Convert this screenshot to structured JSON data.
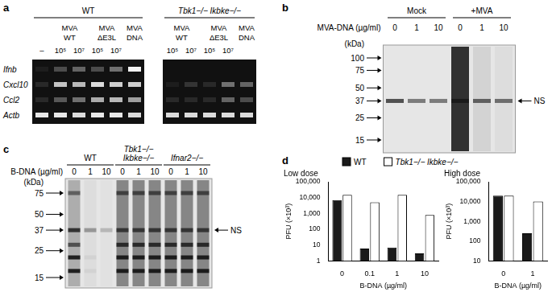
{
  "panels": {
    "a": {
      "label": "a",
      "genotypes": [
        {
          "name": "WT",
          "treatments": [
            {
              "name": null,
              "doses": [
                "–"
              ]
            },
            {
              "name": "MVA WT",
              "doses": [
                "10⁵",
                "10⁷"
              ]
            },
            {
              "name": "MVA ΔE3L",
              "doses": [
                "10⁵",
                "10⁷"
              ]
            },
            {
              "name": "MVA DNA",
              "doses": [
                null
              ]
            }
          ]
        },
        {
          "name": "Tbk1−/− Ikbke−/−",
          "treatments": [
            {
              "name": "MVA WT",
              "doses": [
                "10⁵",
                "10⁷"
              ]
            },
            {
              "name": "MVA ΔE3L",
              "doses": [
                "10⁵",
                "10⁷"
              ]
            },
            {
              "name": "MVA DNA",
              "doses": [
                null
              ]
            }
          ]
        }
      ],
      "genes": [
        {
          "name": "Ifnb",
          "intensity": [
            0.05,
            0.25,
            0.35,
            0.25,
            0.4,
            0.95,
            0,
            0,
            0,
            0,
            0
          ]
        },
        {
          "name": "Cxcl10",
          "intensity": [
            0.1,
            0.75,
            0.7,
            0.85,
            0.8,
            0.8,
            0.05,
            0.15,
            0.1,
            0.4,
            0.35
          ]
        },
        {
          "name": "Ccl2",
          "intensity": [
            0.1,
            0.3,
            0.4,
            0.65,
            0.7,
            0.6,
            0.1,
            0.1,
            0.1,
            0.35,
            0.25
          ]
        },
        {
          "name": "Actb",
          "intensity": [
            0.9,
            0.9,
            0.85,
            0.9,
            0.9,
            0.85,
            0.85,
            0.85,
            0.85,
            0.85,
            0.85
          ]
        }
      ]
    },
    "b": {
      "label": "b",
      "groups": [
        {
          "name": "Mock",
          "lanes": 3
        },
        {
          "name": "+MVA",
          "lanes": 3
        }
      ],
      "dose_title": "MVA-DNA (µg/ml)",
      "doses": [
        0,
        1,
        10,
        0,
        1,
        10
      ],
      "markers": {
        "title": "(kDa)",
        "values": [
          100,
          75,
          50,
          37,
          25,
          15
        ]
      },
      "ns": {
        "label": "NS",
        "kda": 37
      },
      "bands": [
        {
          "kda": 37,
          "intensity": [
            0.7,
            0.5,
            0.5,
            0.7,
            0.6,
            0.55
          ]
        }
      ],
      "smear": [
        0,
        0,
        0,
        0.95,
        0.1,
        0.05
      ]
    },
    "c": {
      "label": "c",
      "groups": [
        {
          "name": "WT",
          "lanes": 3
        },
        {
          "name": "Tbk1−/− Ikbke−/−",
          "lanes": 3
        },
        {
          "name": "Ifnar2−/−",
          "lanes": 3
        }
      ],
      "dose_title": "B-DNA (µg/ml)",
      "doses": [
        0,
        1,
        10,
        0,
        1,
        10,
        0,
        1,
        10
      ],
      "markers": {
        "title": "(kDa)",
        "values": [
          75,
          50,
          37,
          25,
          15
        ]
      },
      "ns": {
        "label": "NS",
        "kda": 37
      },
      "bands": [
        {
          "kda": 75,
          "intensity": [
            0.5,
            0,
            0,
            0.6,
            0.6,
            0.6,
            0.6,
            0.6,
            0.6
          ]
        },
        {
          "kda": 37,
          "intensity": [
            0.8,
            0.35,
            0.2,
            0.7,
            0.7,
            0.7,
            0.7,
            0.7,
            0.7
          ]
        },
        {
          "kda": 28,
          "intensity": [
            0.6,
            0,
            0,
            0.8,
            0.8,
            0.8,
            0.8,
            0.8,
            0.8
          ]
        },
        {
          "kda": 22,
          "intensity": [
            0.9,
            0.05,
            0,
            0.9,
            0.9,
            0.9,
            0.9,
            0.9,
            0.9
          ]
        },
        {
          "kda": 17,
          "intensity": [
            0.9,
            0.05,
            0,
            0.9,
            0.9,
            0.9,
            0.9,
            0.9,
            0.9
          ]
        }
      ],
      "smear": [
        0.3,
        0.05,
        0.02,
        0.5,
        0.5,
        0.5,
        0.5,
        0.5,
        0.5
      ]
    },
    "d": {
      "label": "d"
    }
  },
  "chart_data": [
    {
      "type": "bar",
      "title": "Low dose",
      "x_label": "B-DNA (µg/ml)",
      "y_label": "PFU (×10³)",
      "categories": [
        0,
        0.1,
        1,
        10
      ],
      "series": [
        {
          "name": "WT",
          "color": "#1a1a1a",
          "values": [
            7000,
            6,
            7,
            3
          ]
        },
        {
          "name": "Tbk1−/− Ikbke−/−",
          "color": "#ffffff",
          "values": [
            15000,
            5000,
            15000,
            800
          ]
        }
      ],
      "log": "y",
      "ylim": [
        1,
        100000
      ],
      "yticks": [
        1,
        10,
        100,
        {
          "value": 1000,
          "label": "1,000"
        },
        {
          "value": 10000,
          "label": "10,000"
        },
        {
          "value": 100000,
          "label": "100,000"
        }
      ],
      "grid": false
    },
    {
      "type": "bar",
      "title": "High dose",
      "x_label": "B-DNA (µg/ml)",
      "y_label": "PFU (×10³)",
      "categories": [
        0,
        1
      ],
      "series": [
        {
          "name": "WT",
          "color": "#1a1a1a",
          "values": [
            20000,
            250
          ]
        },
        {
          "name": "Tbk1−/− Ikbke−/−",
          "color": "#ffffff",
          "values": [
            20000,
            10000
          ]
        }
      ],
      "log": "y",
      "ylim": [
        10,
        100000
      ],
      "yticks": [
        10,
        100,
        {
          "value": 1000,
          "label": "1,000"
        },
        {
          "value": 10000,
          "label": "10,000"
        },
        {
          "value": 100000,
          "label": "100,000"
        }
      ],
      "grid": false
    }
  ]
}
